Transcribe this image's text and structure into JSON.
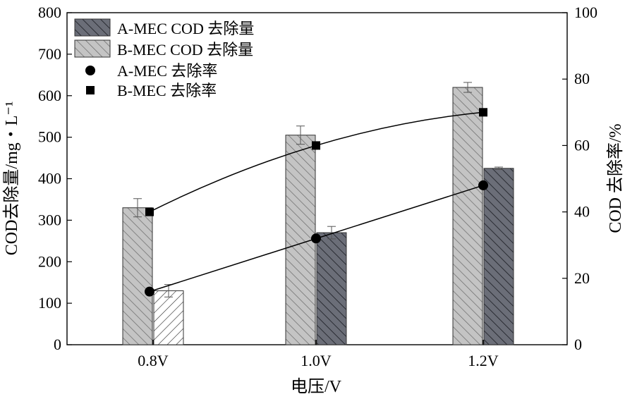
{
  "chart_data": {
    "type": "bar",
    "categories": [
      "0.8V",
      "1.0V",
      "1.2V"
    ],
    "xlabel": "电压/V",
    "ylabel": "COD去除量/mg・L⁻¹",
    "y2label": "COD 去除率/%",
    "ylim": [
      0,
      800
    ],
    "y2lim": [
      0,
      100
    ],
    "yticks": [
      "0",
      "100",
      "200",
      "300",
      "400",
      "500",
      "600",
      "700",
      "800"
    ],
    "y2ticks": [
      "0",
      "20",
      "40",
      "60",
      "80",
      "100"
    ],
    "legend_position": "top-left",
    "series": [
      {
        "name": "A-MEC COD 去除量",
        "kind": "bar",
        "values": [
          130,
          270,
          425
        ],
        "errors": [
          15,
          15,
          3
        ],
        "fill": "#6b6e78"
      },
      {
        "name": "B-MEC COD 去除量",
        "kind": "bar",
        "values": [
          330,
          505,
          620
        ],
        "errors": [
          22,
          22,
          12
        ],
        "fill": "#c4c4c4"
      },
      {
        "name": "A-MEC 去除率",
        "kind": "line",
        "marker": "circle",
        "values": [
          16,
          32,
          48
        ]
      },
      {
        "name": "B-MEC 去除率",
        "kind": "line",
        "marker": "square",
        "values": [
          40,
          60,
          70
        ]
      }
    ]
  }
}
